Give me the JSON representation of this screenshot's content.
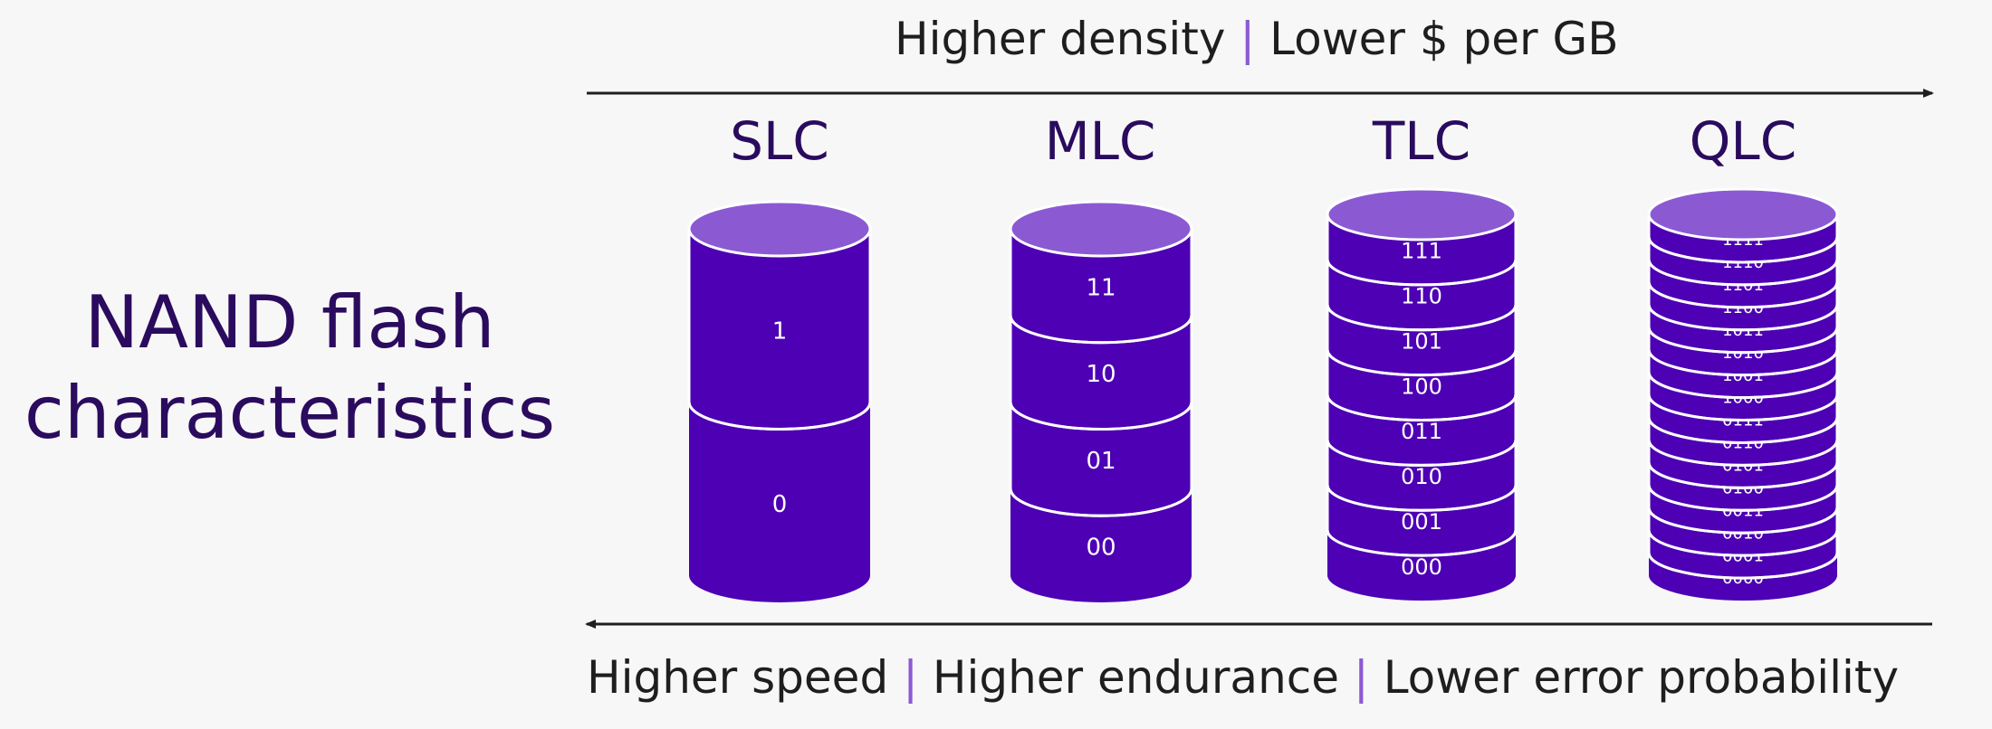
{
  "title": [
    "NAND flash",
    "characteristics"
  ],
  "top_axis": {
    "parts": [
      "Higher density",
      "Lower $ per GB"
    ],
    "separator": "|"
  },
  "bottom_axis": {
    "parts": [
      "Higher speed",
      "Higher endurance",
      "Lower error probability"
    ],
    "separator": "|"
  },
  "colors": {
    "background": "#f7f7f7",
    "body": "#4d00b4",
    "top": "#8b5ad3",
    "title": "#2a0b5e",
    "separator": "#8b5ad3",
    "arrow": "#1e1e1e"
  },
  "columns": [
    {
      "type": "SLC",
      "states": [
        "1",
        "0"
      ]
    },
    {
      "type": "MLC",
      "states": [
        "11",
        "10",
        "01",
        "00"
      ]
    },
    {
      "type": "TLC",
      "states": [
        "111",
        "110",
        "101",
        "100",
        "011",
        "010",
        "001",
        "000"
      ]
    },
    {
      "type": "QLC",
      "states": [
        "1111",
        "1110",
        "1101",
        "1100",
        "1011",
        "1010",
        "1001",
        "1000",
        "0111",
        "0110",
        "0101",
        "0100",
        "0011",
        "0010",
        "0001",
        "0000"
      ]
    }
  ]
}
